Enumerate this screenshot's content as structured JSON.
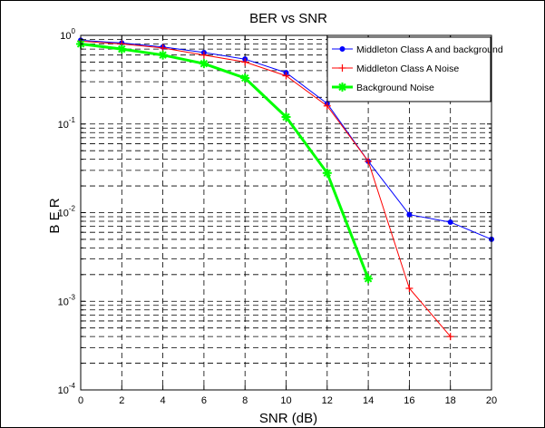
{
  "chart_data": {
    "type": "line",
    "title": "BER vs SNR",
    "xlabel": "SNR (dB)",
    "ylabel": "B E R",
    "x_scale": "linear",
    "y_scale": "log",
    "xlim": [
      0,
      20
    ],
    "ylim": [
      0.0001,
      1
    ],
    "x_ticks": [
      0,
      2,
      4,
      6,
      8,
      10,
      12,
      14,
      16,
      18,
      20
    ],
    "y_ticks": [
      {
        "base": "10",
        "exp": "0"
      },
      {
        "base": "10",
        "exp": "-1"
      },
      {
        "base": "10",
        "exp": "-2"
      },
      {
        "base": "10",
        "exp": "-3"
      },
      {
        "base": "10",
        "exp": "-4"
      }
    ],
    "grid": true,
    "legend_position": "top-right",
    "series": [
      {
        "name": "Middleton Class A and background",
        "color": "#0000ff",
        "marker": "dot",
        "line_width": 1,
        "x": [
          0,
          2,
          4,
          6,
          8,
          10,
          12,
          14,
          16,
          18,
          20
        ],
        "y": [
          0.88,
          0.82,
          0.74,
          0.64,
          0.54,
          0.38,
          0.17,
          0.038,
          0.0095,
          0.0078,
          0.005
        ]
      },
      {
        "name": "Middleton Class A Noise",
        "color": "#ff0000",
        "marker": "plus",
        "line_width": 1,
        "x": [
          0,
          2,
          4,
          6,
          8,
          10,
          12,
          14,
          16,
          18
        ],
        "y": [
          0.86,
          0.8,
          0.72,
          0.6,
          0.5,
          0.35,
          0.16,
          0.038,
          0.0014,
          0.0004
        ]
      },
      {
        "name": "Background Noise",
        "color": "#00ff00",
        "marker": "star",
        "line_width": 3,
        "x": [
          0,
          2,
          4,
          6,
          8,
          10,
          12,
          14
        ],
        "y": [
          0.8,
          0.7,
          0.6,
          0.48,
          0.33,
          0.12,
          0.028,
          0.0018
        ]
      }
    ]
  }
}
